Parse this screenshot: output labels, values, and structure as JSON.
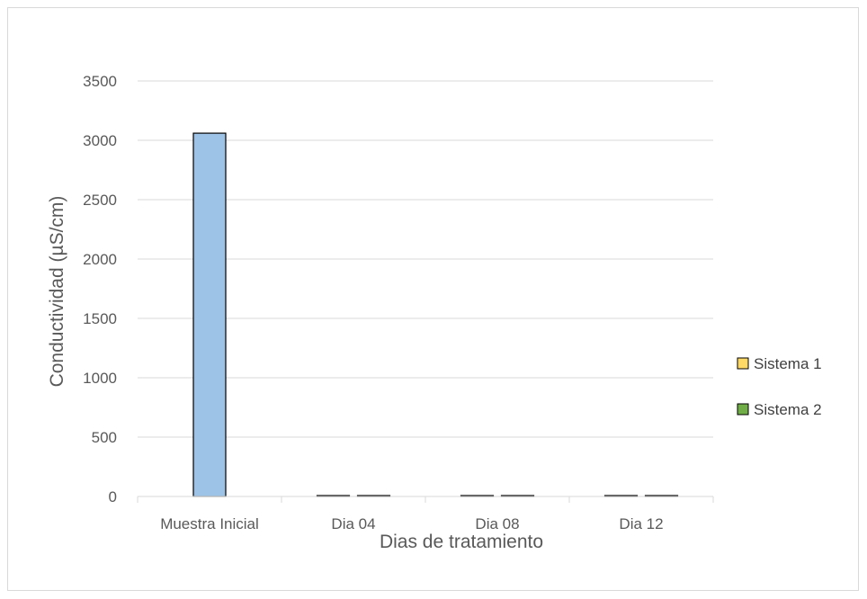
{
  "chart_data": {
    "type": "bar",
    "categories": [
      "Muestra Inicial",
      "Dia 04",
      "Dia 08",
      "Dia 12"
    ],
    "series": [
      {
        "values": [
          3060,
          null,
          null,
          null
        ],
        "color": "#9dc3e6"
      },
      {
        "name": "Sistema 1",
        "values": [
          null,
          5,
          5,
          5
        ],
        "color": "#ffd966"
      },
      {
        "name": "Sistema 2",
        "values": [
          null,
          5,
          5,
          5
        ],
        "color": "#70ad47"
      }
    ],
    "xlabel": "Dias de tratamiento",
    "ylabel": "Conductividad (µS/cm)",
    "ylim": [
      0,
      3500
    ],
    "yticks": [
      "0",
      "500",
      "1000",
      "1500",
      "2000",
      "2500",
      "3000",
      "3500"
    ],
    "grid": true,
    "legend_position": "right"
  }
}
